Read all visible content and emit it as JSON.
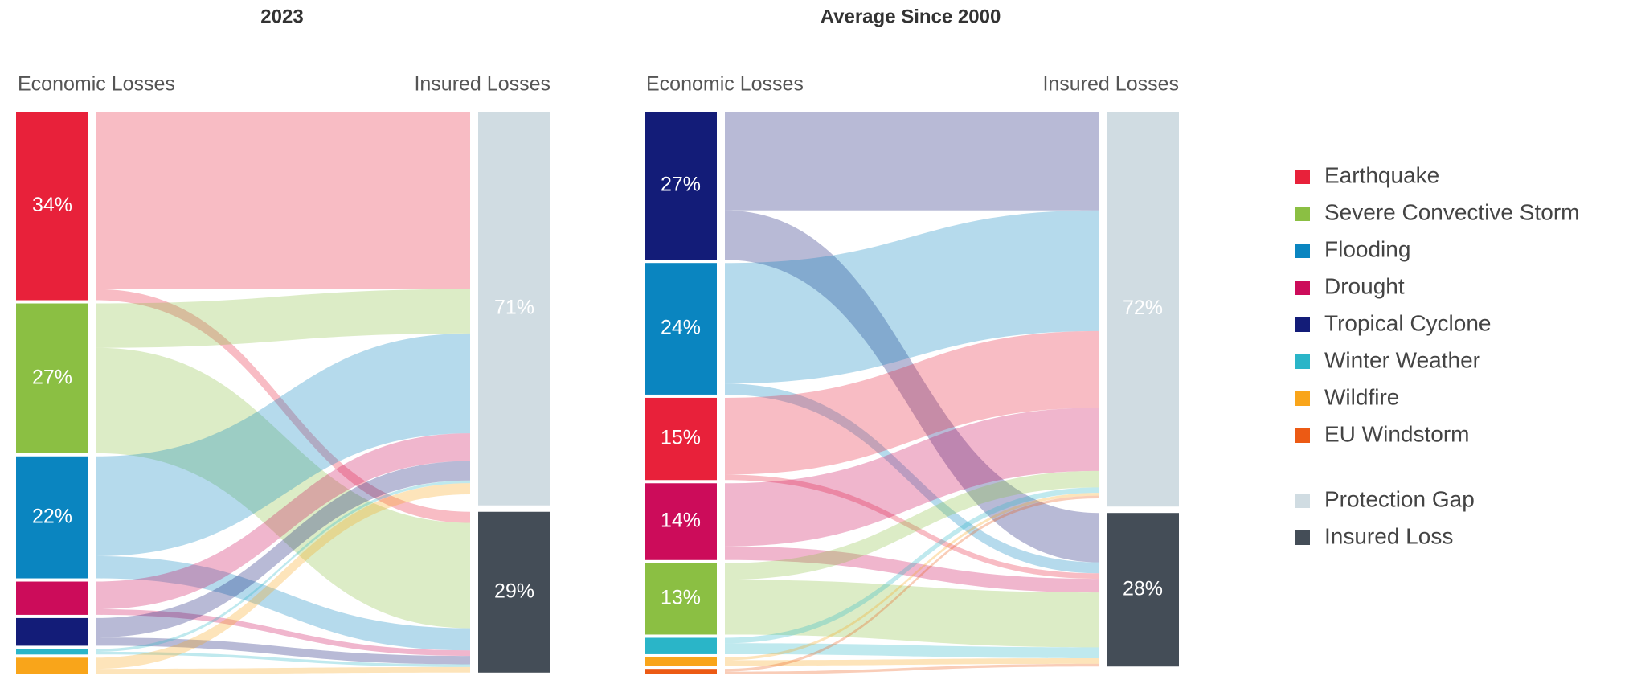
{
  "legend": [
    {
      "name": "Earthquake",
      "color": "#e8213a"
    },
    {
      "name": "Severe Convective Storm",
      "color": "#8bbf43"
    },
    {
      "name": "Flooding",
      "color": "#0a85c0"
    },
    {
      "name": "Drought",
      "color": "#cc0c5a"
    },
    {
      "name": "Tropical Cyclone",
      "color": "#131c78"
    },
    {
      "name": "Winter Weather",
      "color": "#2ab5c8"
    },
    {
      "name": "Wildfire",
      "color": "#f9a51a"
    },
    {
      "name": "EU Windstorm",
      "color": "#ec5a14"
    }
  ],
  "chart_data": [
    {
      "type": "sankey",
      "title": "2023",
      "source_label": "Economic Losses",
      "target_label": "Insured Losses",
      "categories": [
        "Earthquake",
        "Severe Convective Storm",
        "Flooding",
        "Drought",
        "Tropical Cyclone",
        "Winter Weather",
        "Wildfire"
      ],
      "values": [
        34,
        27,
        22,
        6,
        5,
        1,
        3
      ],
      "value_labels": [
        "34%",
        "27%",
        "22%",
        null,
        null,
        null,
        null
      ],
      "series": [
        {
          "name": "Protection Gap",
          "color": "#d0dce2",
          "values": [
            32,
            8,
            18,
            5,
            3.5,
            0.5,
            2
          ],
          "total": 71,
          "total_label": "71%"
        },
        {
          "name": "Insured Loss",
          "color": "#444d57",
          "values": [
            2,
            19,
            4,
            1,
            1.5,
            0.5,
            1
          ],
          "total": 29,
          "total_label": "29%"
        }
      ]
    },
    {
      "type": "sankey",
      "title": "Average Since 2000",
      "source_label": "Economic Losses",
      "target_label": "Insured Losses",
      "categories": [
        "Tropical Cyclone",
        "Flooding",
        "Earthquake",
        "Drought",
        "Severe Convective Storm",
        "Winter Weather",
        "Wildfire",
        "EU Windstorm"
      ],
      "values": [
        27,
        24,
        15,
        14,
        13,
        3,
        1.5,
        1
      ],
      "value_labels": [
        "27%",
        "24%",
        "15%",
        "14%",
        "13%",
        null,
        null,
        null
      ],
      "series": [
        {
          "name": "Protection Gap",
          "color": "#d0dce2",
          "values": [
            18,
            22,
            14,
            11.5,
            3,
            1,
            0.5,
            0.5
          ],
          "total": 72,
          "total_label": "72%"
        },
        {
          "name": "Insured Loss",
          "color": "#444d57",
          "values": [
            9,
            2,
            1,
            2.5,
            10,
            2,
            1,
            0.5
          ],
          "total": 28,
          "total_label": "28%"
        }
      ]
    }
  ]
}
